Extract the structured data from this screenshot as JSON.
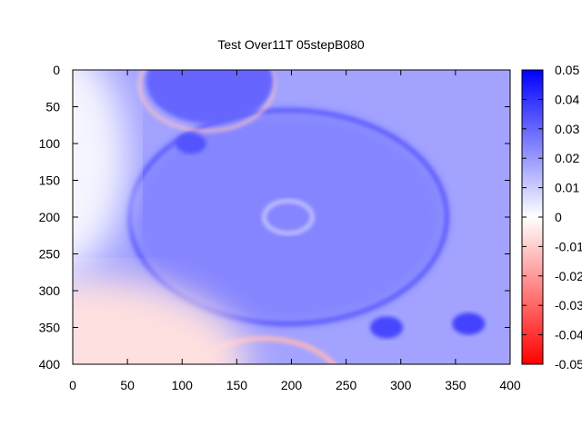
{
  "chart_data": {
    "type": "heatmap",
    "title": "Test Over11T 05stepB080",
    "xlabel": "",
    "ylabel": "",
    "xlim": [
      0,
      400
    ],
    "ylim": [
      0,
      400
    ],
    "y_inverted": true,
    "x_ticks": [
      "0",
      "50",
      "100",
      "150",
      "200",
      "250",
      "300",
      "350",
      "400"
    ],
    "y_ticks": [
      "0",
      "50",
      "100",
      "150",
      "200",
      "250",
      "300",
      "350",
      "400"
    ],
    "colorbar": {
      "range": [
        -0.05,
        0.05
      ],
      "ticks": [
        "0.05",
        "0.04",
        "0.03",
        "0.02",
        "0.01",
        "0",
        "-0.01",
        "-0.02",
        "-0.03",
        "-0.04",
        "-0.05"
      ],
      "colors": {
        "low": "#ff0000",
        "mid": "#ffffff",
        "high": "#0000ff"
      }
    },
    "background_level": 0.018,
    "features": [
      {
        "type": "ring",
        "cx": 197,
        "cy": 200,
        "r": 145,
        "value": 0.032,
        "fill": 0.024
      },
      {
        "type": "ring",
        "cx": 197,
        "cy": 200,
        "r": 22,
        "value": 0.01
      },
      {
        "type": "ring",
        "cx": 125,
        "cy": 15,
        "r": 58,
        "value": 0.03,
        "outer": -0.012
      },
      {
        "type": "spot",
        "cx": 108,
        "cy": 100,
        "r": 14,
        "value": 0.034
      },
      {
        "type": "spot",
        "cx": 287,
        "cy": 350,
        "r": 15,
        "value": 0.036
      },
      {
        "type": "spot",
        "cx": 362,
        "cy": 345,
        "r": 15,
        "value": 0.037
      },
      {
        "type": "ring",
        "cx": 175,
        "cy": 440,
        "r": 75,
        "value": -0.014
      },
      {
        "type": "region",
        "name": "lower-left",
        "value": -0.006
      },
      {
        "type": "region",
        "name": "left-edge",
        "value": 0.002
      }
    ]
  }
}
